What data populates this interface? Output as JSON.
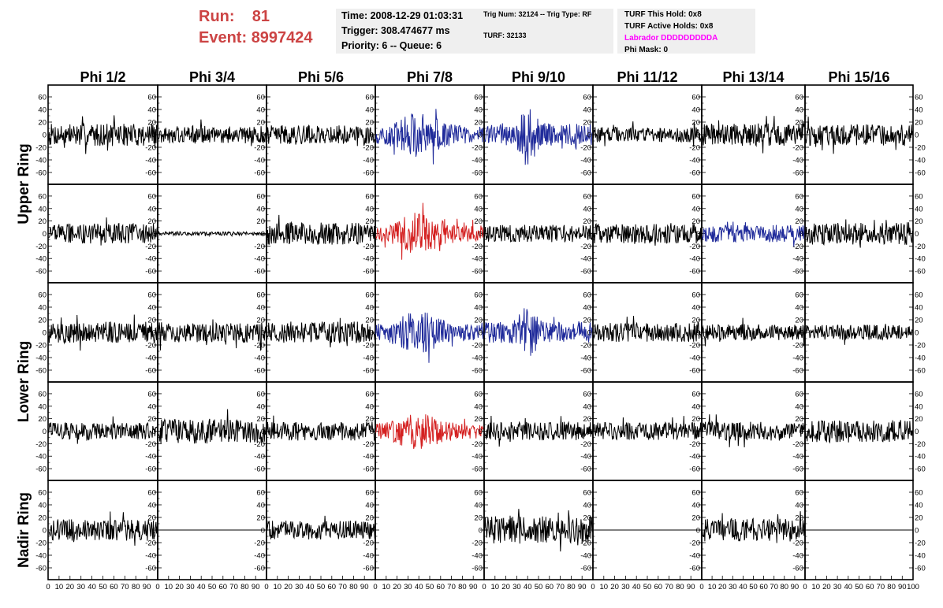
{
  "header": {
    "run_label": "Run:",
    "run_value": "81",
    "event_label": "Event:",
    "event_value": "8997424"
  },
  "info_time": {
    "time": "Time: 2008-12-29 01:03:31",
    "trigger": "Trigger: 308.474677 ms",
    "priority": "Priority: 6 -- Queue: 6"
  },
  "info_trig": {
    "trig": "Trig Num: 32124 -- Trig Type: RF",
    "turf": "TURF: 32133"
  },
  "info_turf": {
    "hold": "TURF This Hold: 0x8",
    "active": "TURF Active Holds: 0x8",
    "labrador": "Labrador DDDDDDDDDA",
    "phimask": "Phi Mask: 0"
  },
  "colors": {
    "run_text": "#cc4444",
    "labrador_text": "#ff00ff",
    "info_bg": "#efefef",
    "trace_normal": "#000000",
    "trace_blue": "#1f2a9a",
    "trace_red": "#d42020"
  },
  "chart_data": {
    "type": "line",
    "columns": [
      "Phi 1/2",
      "Phi 3/4",
      "Phi 5/6",
      "Phi 7/8",
      "Phi 9/10",
      "Phi 11/12",
      "Phi 13/14",
      "Phi 15/16"
    ],
    "rows": [
      "Upper Ring",
      "Upper Ring",
      "Lower Ring",
      "Lower Ring",
      "Nadir Ring"
    ],
    "ring_labels": [
      "Upper Ring",
      "Lower Ring",
      "Nadir Ring"
    ],
    "xlim": [
      0,
      100
    ],
    "ylim": [
      -70,
      70
    ],
    "yticks": [
      -60,
      -40,
      -20,
      0,
      20,
      40,
      60
    ],
    "xticks": [
      0,
      10,
      20,
      30,
      40,
      50,
      60,
      70,
      80,
      90,
      100
    ],
    "last_column_xticks": [
      0,
      10,
      20,
      30,
      40,
      50,
      60,
      70,
      80,
      90,
      100
    ],
    "traces": [
      [
        {
          "color": "black",
          "amp": 18,
          "env": "noise"
        },
        {
          "color": "black",
          "amp": 14,
          "env": "noise"
        },
        {
          "color": "black",
          "amp": 15,
          "env": "noise"
        },
        {
          "color": "blue",
          "amp": 30,
          "env": "pulse"
        },
        {
          "color": "blue",
          "amp": 32,
          "env": "spike"
        },
        {
          "color": "black",
          "amp": 12,
          "env": "noise"
        },
        {
          "color": "black",
          "amp": 18,
          "env": "noise"
        },
        {
          "color": "black",
          "amp": 17,
          "env": "noise"
        }
      ],
      [
        {
          "color": "black",
          "amp": 16,
          "env": "noise"
        },
        {
          "color": "black",
          "amp": 3,
          "env": "noise"
        },
        {
          "color": "black",
          "amp": 18,
          "env": "noise"
        },
        {
          "color": "red",
          "amp": 28,
          "env": "pulse"
        },
        {
          "color": "black",
          "amp": 14,
          "env": "noise"
        },
        {
          "color": "black",
          "amp": 16,
          "env": "noise"
        },
        {
          "color": "blue",
          "amp": 14,
          "env": "noise"
        },
        {
          "color": "black",
          "amp": 18,
          "env": "noise"
        }
      ],
      [
        {
          "color": "black",
          "amp": 17,
          "env": "noise"
        },
        {
          "color": "black",
          "amp": 16,
          "env": "noise"
        },
        {
          "color": "black",
          "amp": 17,
          "env": "noise"
        },
        {
          "color": "blue",
          "amp": 28,
          "env": "pulse"
        },
        {
          "color": "blue",
          "amp": 30,
          "env": "spike"
        },
        {
          "color": "black",
          "amp": 15,
          "env": "noise"
        },
        {
          "color": "black",
          "amp": 13,
          "env": "noise"
        },
        {
          "color": "black",
          "amp": 12,
          "env": "noise"
        }
      ],
      [
        {
          "color": "black",
          "amp": 14,
          "env": "noise"
        },
        {
          "color": "black",
          "amp": 20,
          "env": "noise"
        },
        {
          "color": "black",
          "amp": 15,
          "env": "noise"
        },
        {
          "color": "red",
          "amp": 26,
          "env": "pulse"
        },
        {
          "color": "black",
          "amp": 15,
          "env": "noise"
        },
        {
          "color": "black",
          "amp": 14,
          "env": "noise"
        },
        {
          "color": "black",
          "amp": 15,
          "env": "noise"
        },
        {
          "color": "black",
          "amp": 18,
          "env": "noise"
        }
      ],
      [
        {
          "color": "black",
          "amp": 17,
          "env": "noise"
        },
        {
          "color": "black",
          "amp": 0,
          "env": "flat"
        },
        {
          "color": "black",
          "amp": 15,
          "env": "noise"
        },
        {
          "color": "none",
          "amp": 0,
          "env": "none"
        },
        {
          "color": "black",
          "amp": 22,
          "env": "noise"
        },
        {
          "color": "black",
          "amp": 0,
          "env": "flat"
        },
        {
          "color": "black",
          "amp": 18,
          "env": "noise"
        },
        {
          "color": "black",
          "amp": 0,
          "env": "flat"
        }
      ]
    ]
  }
}
